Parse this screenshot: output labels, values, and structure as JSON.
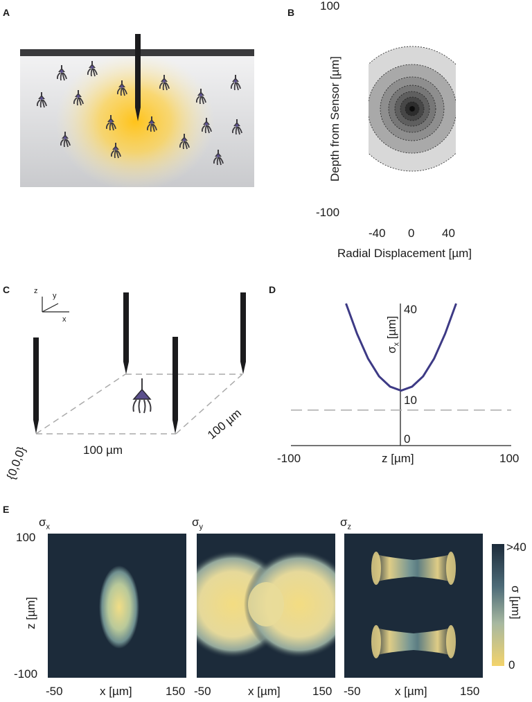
{
  "panels": {
    "a": {
      "letter": "A"
    },
    "b": {
      "letter": "B",
      "y_top": "100",
      "y_bottom": "-100",
      "ylabel": "Depth from Sensor [µm]",
      "x_ticks": [
        "-40",
        "0",
        "40"
      ],
      "xlabel": "Radial Displacement [µm]"
    },
    "c": {
      "letter": "C",
      "axis_z": "z",
      "axis_y": "y",
      "axis_x": "x",
      "origin": "{0,0,0}",
      "len_x": "100 µm",
      "len_y": "100 µm"
    },
    "d": {
      "letter": "D",
      "y_ticks": [
        "40",
        "10",
        "0"
      ],
      "ylabel_base": "σ",
      "ylabel_sub": "x",
      "ylabel_unit": " [µm]",
      "x_left": "-100",
      "x_right": "100",
      "xlabel": "z [µm]"
    },
    "e": {
      "letter": "E",
      "titles": [
        {
          "base": "σ",
          "sub": "x"
        },
        {
          "base": "σ",
          "sub": "y"
        },
        {
          "base": "σ",
          "sub": "z"
        }
      ],
      "y_top": "100",
      "y_bottom": "-100",
      "ylabel": "z [µm]",
      "x_left": "-50",
      "x_right": "150",
      "xlabel": "x [µm]",
      "cbar_top": ">40",
      "cbar_bottom": "0",
      "cbar_label": "σ [µm]"
    }
  },
  "colors": {
    "dark": "#1c2b3a",
    "yellow": "#f3d36b",
    "curve": "#3d3a85",
    "neuron": "#3c3a3f",
    "soma": "#5a4f8c"
  },
  "chart_data": {
    "type": "line",
    "title": "",
    "xlabel": "z [µm]",
    "ylabel": "σx [µm]",
    "xlim": [
      -100,
      100
    ],
    "ylim": [
      0,
      40
    ],
    "series": [
      {
        "x": [
          -50,
          -40,
          -30,
          -20,
          -10,
          0,
          10,
          20,
          30,
          40,
          50
        ],
        "y": [
          40,
          31.5,
          24.5,
          19.5,
          16.6,
          15.5,
          16.6,
          19.5,
          24.5,
          31.5,
          40
        ]
      }
    ],
    "reference_lines": [
      {
        "y": 10,
        "style": "dashed"
      }
    ]
  }
}
